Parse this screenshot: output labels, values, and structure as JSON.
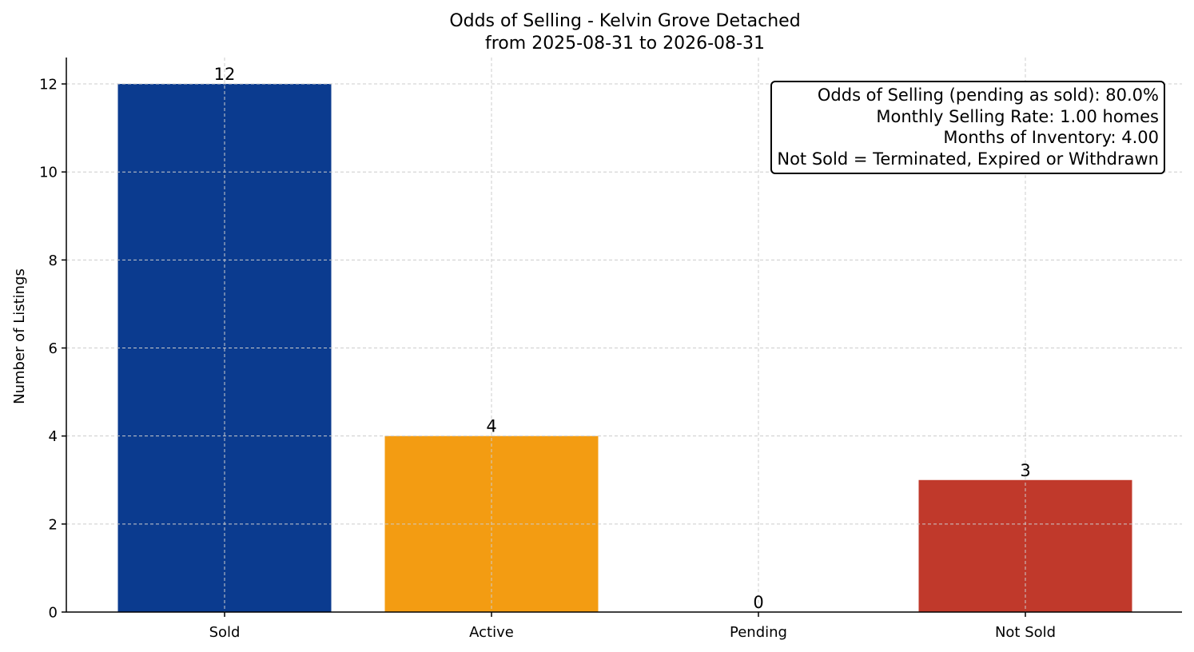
{
  "chart_data": {
    "type": "bar",
    "title": "Odds of Selling - Kelvin Grove Detached",
    "subtitle": "from 2025-08-31 to 2026-08-31",
    "xlabel": "",
    "ylabel": "Number of Listings",
    "categories": [
      "Sold",
      "Active",
      "Pending",
      "Not Sold"
    ],
    "values": [
      12,
      4,
      0,
      3
    ],
    "data_labels": [
      "12",
      "4",
      "0",
      "3"
    ],
    "colors": [
      "#0b3b8f",
      "#f39c12",
      "#8e8e8e",
      "#c0392b"
    ],
    "ylim": [
      0,
      12.6
    ],
    "yticks": [
      0,
      2,
      4,
      6,
      8,
      10,
      12
    ],
    "grid": true,
    "legend": "none",
    "annotation": {
      "placement": "top-right",
      "lines": [
        "Odds of Selling (pending as sold): 80.0%",
        "Monthly Selling Rate: 1.00 homes",
        "Months of Inventory: 4.00",
        "Not Sold = Terminated, Expired or Withdrawn"
      ]
    }
  }
}
